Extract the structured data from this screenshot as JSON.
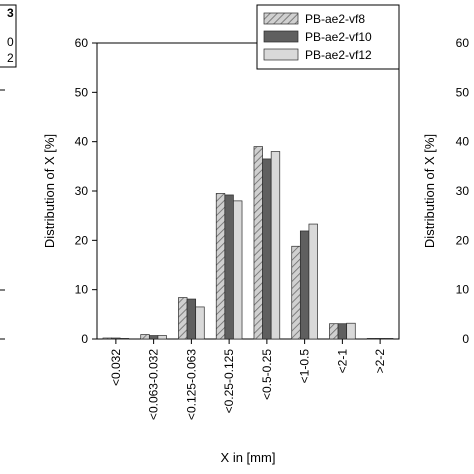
{
  "chart_data": {
    "type": "bar",
    "title": "",
    "xlabel": "X in [mm]",
    "ylabel": "Distribution of X [%]",
    "ylim": [
      0,
      60
    ],
    "yticks": [
      0,
      10,
      20,
      30,
      40,
      50,
      60
    ],
    "categories": [
      "<0.032",
      "<0.063-0.032",
      "<0.125-0.063",
      "<0.25-0.125",
      "<0.5-0.25",
      "<1-0.5",
      "<2-1",
      ">2-2"
    ],
    "series": [
      {
        "name": "PB-ae2-vf8",
        "color": "#bdbdbd",
        "pattern": "hatched",
        "values": [
          0.2,
          0.9,
          8.4,
          29.5,
          39.0,
          18.8,
          3.1,
          0.1
        ]
      },
      {
        "name": "PB-ae2-vf10",
        "color": "#5f5f5f",
        "pattern": "solid",
        "values": [
          0.2,
          0.7,
          8.1,
          29.2,
          36.5,
          21.9,
          3.1,
          0.1
        ]
      },
      {
        "name": "PB-ae2-vf12",
        "color": "#d9d9d9",
        "pattern": "solid",
        "values": [
          0.1,
          0.7,
          6.5,
          28.0,
          38.0,
          23.3,
          3.2,
          0.1
        ]
      }
    ],
    "legend": "top-right",
    "grid": false
  },
  "left_fragment": {
    "title_end": "3",
    "lines": [
      "0",
      "2"
    ]
  },
  "right_fragment": {
    "ylabel": "Distribution of X [%]",
    "yticks": [
      "60",
      "50",
      "40",
      "30",
      "20",
      "10",
      "0"
    ]
  }
}
